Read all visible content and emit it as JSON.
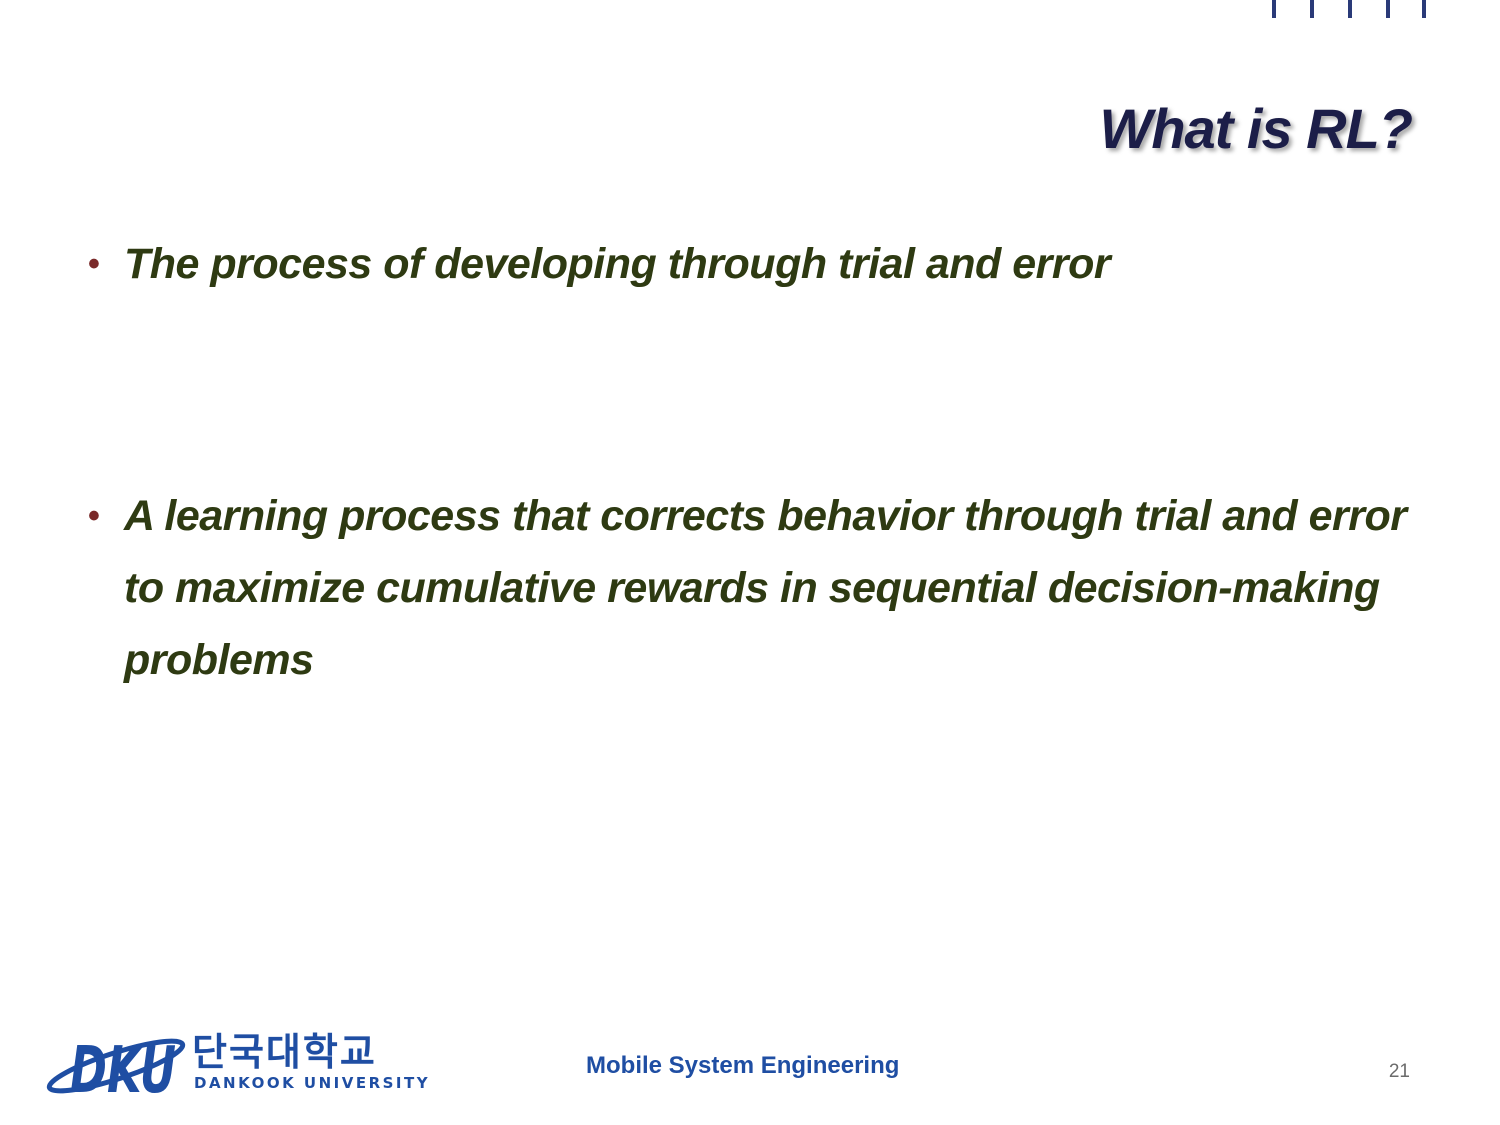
{
  "slide": {
    "title": "What is RL?",
    "bullets": [
      {
        "text": "The process of developing through trial and error"
      },
      {
        "text": "A learning process that corrects behavior through trial and error to maximize cumulative rewards in sequential decision-making problems"
      }
    ],
    "bullet_glyph": "•"
  },
  "footer": {
    "logo": {
      "korean": "단국대학교",
      "english": "DANKOOK UNIVERSITY",
      "mark_text": "DKU"
    },
    "course": "Mobile System Engineering",
    "page_number": "21"
  },
  "colors": {
    "title": "#1c1e48",
    "body_text": "#2e3a12",
    "bullet": "#7a2a2a",
    "accent_blue": "#1f4ea3",
    "page_number": "#6b6b6b",
    "ticks": "#2a3a78"
  }
}
